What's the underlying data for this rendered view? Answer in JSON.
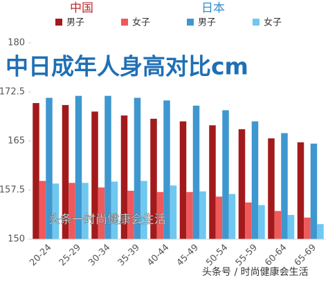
{
  "chart_data": {
    "type": "bar",
    "title": "中日成年人身高对比cm",
    "legend_groups": [
      {
        "name": "中国",
        "color": "#c0282b"
      },
      {
        "name": "日本",
        "color": "#2f8ccc"
      }
    ],
    "categories": [
      "20-24",
      "25-29",
      "30-34",
      "35-39",
      "40-44",
      "45-49",
      "50-54",
      "55-59",
      "60-64",
      "65-69"
    ],
    "series": [
      {
        "name": "男子",
        "color": "#a31a1c",
        "values": [
          170.8,
          170.5,
          169.5,
          168.9,
          168.4,
          168.0,
          167.4,
          166.8,
          165.4,
          164.8
        ]
      },
      {
        "name": "女子",
        "color": "#f0595b",
        "values": [
          158.9,
          158.6,
          157.9,
          157.4,
          157.2,
          157.2,
          156.5,
          155.6,
          154.3,
          153.3
        ]
      },
      {
        "name": "男子",
        "color": "#3f97cf",
        "values": [
          171.6,
          171.9,
          171.9,
          171.6,
          171.2,
          170.4,
          169.7,
          168.0,
          166.2,
          164.6
        ]
      },
      {
        "name": "女子",
        "color": "#6fc8f0",
        "values": [
          158.5,
          158.6,
          158.8,
          158.9,
          158.2,
          157.3,
          156.9,
          155.2,
          153.7,
          152.3
        ]
      }
    ],
    "ylim": [
      150,
      180
    ],
    "yticks": [
      150,
      157.5,
      165,
      172.5,
      180
    ],
    "grid": false,
    "watermarks": [
      "头条一时尚健康会生活",
      "头条号 / 时尚健康会生活"
    ]
  }
}
